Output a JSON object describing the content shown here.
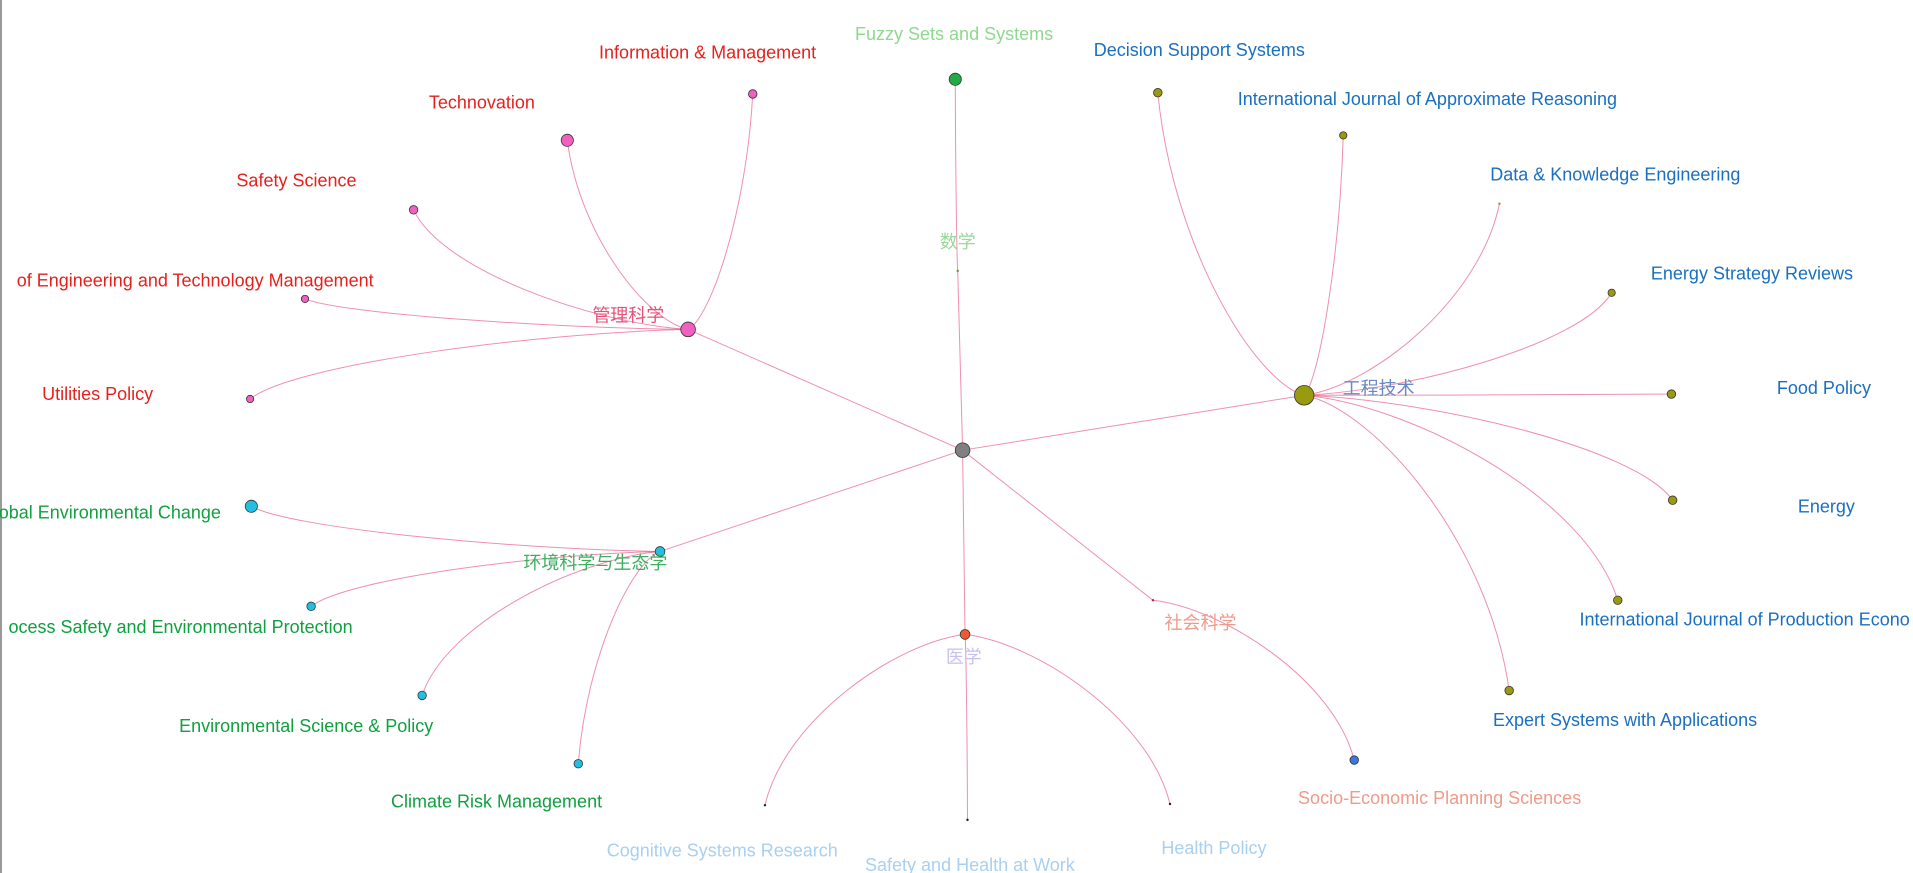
{
  "groups": [
    {
      "label": "管理科学",
      "children": [
        "Information & Management",
        "Technovation",
        "Safety Science",
        "of Engineering and Technology Management",
        "Utilities Policy"
      ]
    },
    {
      "label": "数学",
      "children": [
        "Fuzzy Sets and Systems"
      ]
    },
    {
      "label": "工程技术",
      "children": [
        "Decision Support Systems",
        "International Journal of Approximate Reasoning",
        "Data & Knowledge Engineering",
        "Energy Strategy Reviews",
        "Food Policy",
        "Energy",
        "International Journal of Production Econo",
        "Expert Systems with Applications"
      ]
    },
    {
      "label": "环境科学与生态学",
      "children": [
        "obal Environmental Change",
        "ocess Safety and Environmental Protection",
        "Environmental Science & Policy",
        "Climate Risk Management"
      ]
    },
    {
      "label": "社会科学",
      "children": [
        "Socio-Economic Planning Sciences"
      ]
    },
    {
      "label": "医学",
      "children": [
        "Cognitive Systems Research",
        "Safety and Health at Work",
        "Health Policy"
      ]
    }
  ]
}
